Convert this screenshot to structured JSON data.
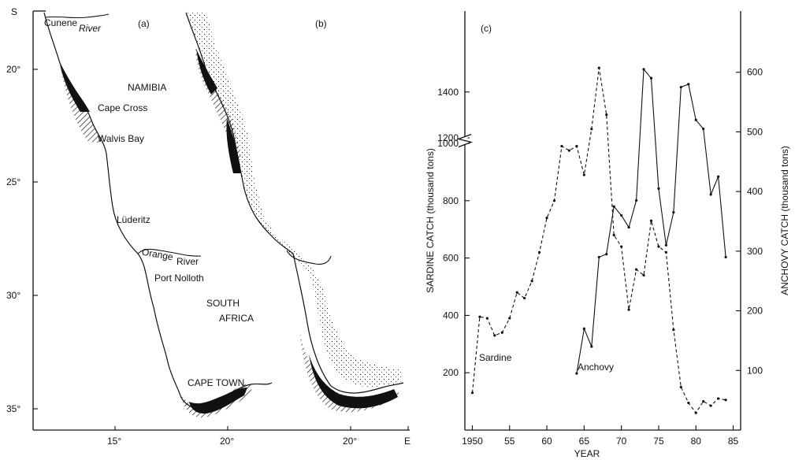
{
  "maps": {
    "panel_a": {
      "label": "(a)",
      "y_ticks": [
        "S",
        "20°",
        "25°",
        "30°",
        "35°"
      ],
      "x_ticks": [
        "15°",
        "20°"
      ],
      "places": [
        "Cunene",
        "River",
        "NAMIBIA",
        "Cape Cross",
        "Walvis Bay",
        "Lüderitz",
        "Orange",
        "River",
        "Port Nolloth",
        "SOUTH",
        "AFRICA",
        "CAPE TOWN"
      ]
    },
    "panel_b": {
      "label": "(b)",
      "x_ticks": [
        "20°",
        "E"
      ]
    },
    "colors": {
      "ink": "#111111",
      "paper": "#ffffff"
    }
  },
  "chart_data": {
    "type": "line",
    "panel_label": "(c)",
    "xlabel": "YEAR",
    "ylabel_left": "SARDINE CATCH (thousand tons)",
    "ylabel_right": "ANCHOVY CATCH (thousand tons)",
    "x_ticks": [
      1950,
      1955,
      1960,
      1965,
      1970,
      1975,
      1980,
      1985
    ],
    "x_tick_labels": [
      "1950",
      "55",
      "60",
      "65",
      "70",
      "75",
      "80",
      "85"
    ],
    "xlim": [
      1949,
      1986
    ],
    "left_axis": {
      "ticks": [
        200,
        400,
        600,
        800,
        1000,
        1200,
        1400
      ],
      "axis_break_between": [
        1000,
        1200
      ]
    },
    "right_axis": {
      "ticks": [
        100,
        200,
        300,
        400,
        500,
        600
      ],
      "ylim": [
        0,
        700
      ]
    },
    "series": [
      {
        "name": "Sardine",
        "axis": "left",
        "style": "dashed",
        "x": [
          1950,
          1951,
          1952,
          1953,
          1954,
          1955,
          1956,
          1957,
          1958,
          1959,
          1960,
          1961,
          1962,
          1963,
          1964,
          1965,
          1966,
          1967,
          1968,
          1969,
          1970,
          1971,
          1972,
          1973,
          1974,
          1975,
          1976,
          1977,
          1978,
          1979,
          1980,
          1981,
          1982,
          1983,
          1984
        ],
        "y": [
          130,
          395,
          390,
          330,
          340,
          390,
          480,
          460,
          520,
          620,
          740,
          800,
          990,
          975,
          990,
          890,
          1050,
          1505,
          1100,
          680,
          640,
          420,
          560,
          540,
          730,
          640,
          620,
          350,
          150,
          95,
          60,
          100,
          85,
          110,
          105
        ]
      },
      {
        "name": "Anchovy",
        "axis": "right",
        "style": "solid",
        "x": [
          1964,
          1965,
          1966,
          1967,
          1968,
          1969,
          1970,
          1971,
          1972,
          1973,
          1974,
          1975,
          1976,
          1977,
          1978,
          1979,
          1980,
          1981,
          1982,
          1983,
          1984
        ],
        "y": [
          95,
          170,
          140,
          290,
          295,
          375,
          360,
          340,
          385,
          605,
          590,
          405,
          310,
          365,
          575,
          580,
          520,
          505,
          395,
          425,
          290
        ]
      }
    ]
  }
}
